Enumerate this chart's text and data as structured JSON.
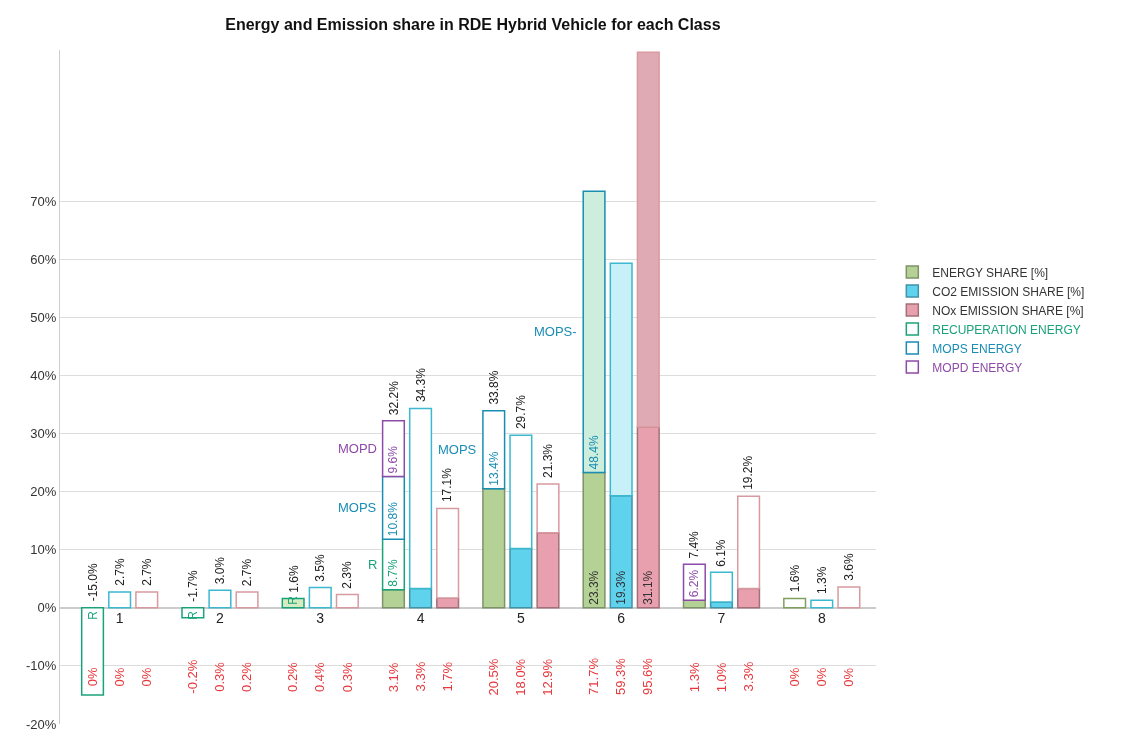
{
  "chart_data": {
    "type": "bar",
    "stacked": true,
    "title": "Energy and Emission share in RDE Hybrid Vehicle for each Class",
    "categories": [
      null,
      "1",
      null,
      null,
      "2",
      null,
      null,
      "3",
      null,
      null,
      "4",
      null,
      null,
      "5",
      null,
      null,
      "6",
      null,
      null,
      "7",
      null,
      null,
      "8",
      null
    ],
    "series": [
      {
        "name": "ENERGY SHARE [%]",
        "color": "#b5d296",
        "values": [
          null,
          null,
          null,
          null,
          null,
          null,
          null,
          null,
          null,
          3.1,
          null,
          null,
          20.5,
          null,
          null,
          23.3,
          null,
          null,
          1.3,
          null,
          null,
          null,
          null,
          null
        ],
        "value_labels": [
          null,
          null,
          null,
          null,
          null,
          null,
          null,
          null,
          null,
          null,
          null,
          null,
          null,
          null,
          null,
          "23.3%",
          null,
          null,
          null,
          null,
          null,
          null,
          null,
          null
        ]
      },
      {
        "name": "RECUPERATION ENERGY",
        "color": "#1aa37a",
        "colors": [
          "#ffffff",
          "#ffffff",
          "#ffffff",
          "#ffffff",
          "#ffffff",
          "#ffffff",
          "#d6ecc0",
          "#ffffff",
          "#ffffff",
          "#ffffff",
          "#ffffff",
          "#ffffff",
          "#ffffff",
          "#ffffff",
          "#ffffff",
          "#ffffff",
          "#ffffff",
          "#ffffff",
          "#ffffff",
          "#ffffff",
          "#ffffff",
          "#ffffff",
          "#ffffff",
          "#ffffff"
        ],
        "values": [
          -15.0,
          null,
          null,
          -1.7,
          null,
          null,
          1.6,
          null,
          null,
          8.7,
          null,
          null,
          null,
          null,
          null,
          null,
          null,
          null,
          null,
          null,
          null,
          null,
          null,
          null
        ],
        "value_labels": [
          "R",
          null,
          null,
          "R",
          null,
          null,
          "R",
          null,
          null,
          "8.7%",
          null,
          null,
          null,
          null,
          null,
          null,
          null,
          null,
          null,
          null,
          null,
          null,
          null,
          null
        ]
      },
      {
        "name": "MOPS ENERGY",
        "color": "#1a8db3",
        "colors": [
          "#ffffff",
          "#ffffff",
          "#ffffff",
          "#ffffff",
          "#ffffff",
          "#ffffff",
          "#ffffff",
          "#ffffff",
          "#ffffff",
          "#ffffff",
          "#ffffff",
          "#ffffff",
          "#ffffff",
          "#ffffff",
          "#ffffff",
          "#cdeedd",
          "#ffffff",
          "#ffffff",
          "#ffffff",
          "#ffffff",
          "#ffffff",
          "#ffffff",
          "#ffffff",
          "#ffffff"
        ],
        "values": [
          null,
          null,
          null,
          null,
          null,
          null,
          null,
          null,
          null,
          10.8,
          null,
          null,
          13.4,
          null,
          null,
          48.4,
          null,
          null,
          null,
          null,
          null,
          null,
          null,
          null
        ],
        "value_labels": [
          null,
          null,
          null,
          null,
          null,
          null,
          null,
          null,
          null,
          "10.8%",
          null,
          null,
          "13.4%",
          null,
          null,
          "48.4%",
          null,
          null,
          null,
          null,
          null,
          null,
          null,
          null
        ]
      },
      {
        "name": "MOPD ENERGY",
        "color": "#8e4aa8",
        "colors": [
          "#ffffff",
          "#ffffff",
          "#ffffff",
          "#ffffff",
          "#ffffff",
          "#ffffff",
          "#ffffff",
          "#ffffff",
          "#ffffff",
          "#ffffff",
          "#ffffff",
          "#ffffff",
          "#ffffff",
          "#ffffff",
          "#ffffff",
          "#ffffff",
          "#ffffff",
          "#ffffff",
          "#ffffff",
          "#ffffff",
          "#ffffff",
          "#ffffff",
          "#ffffff",
          "#ffffff"
        ],
        "values": [
          null,
          null,
          null,
          null,
          null,
          null,
          null,
          null,
          null,
          9.6,
          null,
          null,
          null,
          null,
          null,
          null,
          null,
          null,
          6.2,
          null,
          null,
          null,
          null,
          null
        ],
        "value_labels": [
          null,
          null,
          null,
          null,
          null,
          null,
          null,
          null,
          null,
          "9.6%",
          null,
          null,
          null,
          null,
          null,
          null,
          null,
          null,
          "6.2%",
          null,
          null,
          null,
          null,
          null
        ]
      },
      {
        "color": "#7f9f5f",
        "colors": [
          "#ffffff",
          "#ffffff",
          "#ffffff",
          "#ffffff",
          "#ffffff",
          "#ffffff",
          "#ffffff",
          "#ffffff",
          "#ffffff",
          "#ffffff",
          "#ffffff",
          "#ffffff",
          "#ffffff",
          "#ffffff",
          "#ffffff",
          "#ffffff",
          "#ffffff",
          "#ffffff",
          "#ffffff",
          "#ffffff",
          "#ffffff",
          "#ffffff",
          "#ffffff",
          "#ffffff"
        ],
        "values": [
          null,
          null,
          null,
          null,
          null,
          null,
          null,
          null,
          null,
          null,
          null,
          null,
          null,
          null,
          null,
          null,
          null,
          null,
          null,
          null,
          null,
          1.6,
          null,
          null
        ]
      },
      {
        "name": "CO2 EMISSION SHARE [%]",
        "color": "#5fd3ee",
        "values": [
          null,
          null,
          null,
          null,
          null,
          null,
          null,
          null,
          null,
          null,
          3.3,
          null,
          null,
          10.2,
          null,
          null,
          19.3,
          null,
          null,
          1.0,
          null,
          null,
          null,
          null
        ],
        "value_labels": [
          null,
          null,
          null,
          null,
          null,
          null,
          null,
          null,
          null,
          null,
          null,
          null,
          null,
          null,
          null,
          null,
          "19.3%",
          null,
          null,
          null,
          null,
          null,
          null,
          null
        ]
      },
      {
        "color": "#3cb8d0",
        "colors": [
          "#ffffff",
          "#ffffff",
          "#ffffff",
          "#ffffff",
          "#ffffff",
          "#ffffff",
          "#ffffff",
          "#ffffff",
          "#ffffff",
          "#ffffff",
          "#ffffff",
          "#ffffff",
          "#ffffff",
          "#ffffff",
          "#ffffff",
          "#ffffff",
          "#c8f0f8",
          "#ffffff",
          "#ffffff",
          "#ffffff",
          "#ffffff",
          "#ffffff",
          "#ffffff",
          "#ffffff"
        ],
        "values": [
          null,
          2.7,
          null,
          null,
          3.0,
          null,
          null,
          3.5,
          null,
          null,
          31.0,
          null,
          null,
          19.5,
          null,
          null,
          40.0,
          null,
          null,
          5.1,
          null,
          null,
          1.3,
          null
        ]
      },
      {
        "name": "NOx EMISSION SHARE [%]",
        "color": "#e8a0ae",
        "values": [
          null,
          null,
          null,
          null,
          null,
          null,
          null,
          null,
          null,
          null,
          null,
          1.7,
          null,
          null,
          12.9,
          null,
          null,
          31.1,
          null,
          null,
          3.3,
          null,
          null,
          null
        ],
        "value_labels": [
          null,
          null,
          null,
          null,
          null,
          null,
          null,
          null,
          null,
          null,
          null,
          null,
          null,
          null,
          null,
          null,
          null,
          "31.1%",
          null,
          null,
          null,
          null,
          null,
          null
        ]
      },
      {
        "color": "#d89aa0",
        "colors": [
          "#ffffff",
          "#ffffff",
          "#ffffff",
          "#ffffff",
          "#ffffff",
          "#ffffff",
          "#ffffff",
          "#ffffff",
          "#ffffff",
          "#ffffff",
          "#ffffff",
          "#ffffff",
          "#ffffff",
          "#ffffff",
          "#ffffff",
          "#ffffff",
          "#ffffff",
          "#e0aab5",
          "#ffffff",
          "#ffffff",
          "#ffffff",
          "#ffffff",
          "#ffffff",
          "#ffffff"
        ],
        "values": [
          null,
          null,
          2.7,
          null,
          null,
          2.7,
          null,
          null,
          2.3,
          null,
          null,
          15.4,
          null,
          null,
          8.4,
          null,
          null,
          64.5,
          null,
          null,
          15.9,
          null,
          null,
          3.6
        ]
      }
    ],
    "totals": [
      "-15.0%",
      "2.7%",
      "2.7%",
      "-1.7%",
      "3.0%",
      "2.7%",
      "1.6%",
      "3.5%",
      "2.3%",
      "32.2%",
      "34.3%",
      "17.1%",
      "33.8%",
      "29.7%",
      "21.3%",
      null,
      null,
      null,
      "7.4%",
      "6.1%",
      "19.2%",
      "1.6%",
      "1.3%",
      "3.6%"
    ],
    "annotations": [
      "0%",
      "0%",
      "0%",
      "-0.2%",
      "0.3%",
      "0.2%",
      "0.2%",
      "0.4%",
      "0.3%",
      "3.1%",
      "3.3%",
      "1.7%",
      "20.5%",
      "18.0%",
      "12.9%",
      "71.7%",
      "59.3%",
      "95.6%",
      "1.3%",
      "1.0%",
      "3.3%",
      "0%",
      "0%",
      "0%",
      "R",
      "MOPS",
      "MOPD",
      "MOPS",
      "MOPS-"
    ],
    "ylim": [
      -20,
      96
    ],
    "yticks": [
      {
        "value": -20,
        "label": "-20%"
      },
      {
        "value": -10,
        "label": "-10%"
      },
      {
        "value": 0,
        "label": "0%"
      },
      {
        "value": 10,
        "label": "10%"
      },
      {
        "value": 20,
        "label": "20%"
      },
      {
        "value": 30,
        "label": "30%"
      },
      {
        "value": 40,
        "label": "40%"
      },
      {
        "value": 50,
        "label": "50%"
      },
      {
        "value": 60,
        "label": "60%"
      },
      {
        "value": 70,
        "label": "70%"
      }
    ],
    "grid": "y",
    "legend": "right"
  }
}
